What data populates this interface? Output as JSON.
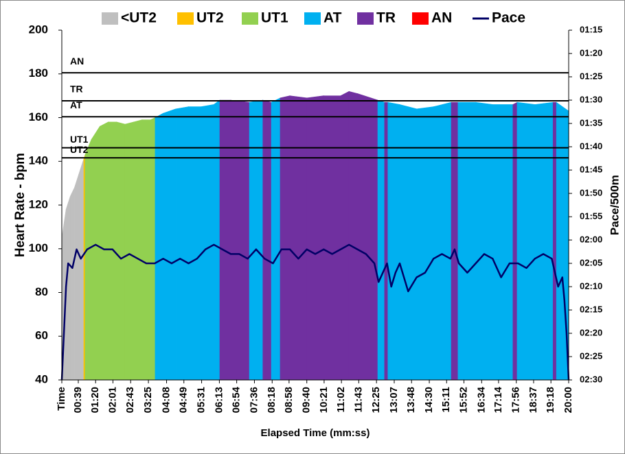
{
  "chart_data": {
    "type": "area",
    "x_label": "Elapsed Time (mm:ss)",
    "y_label": "Heart Rate - bpm",
    "y2_label": "Pace/500m",
    "xlim": [
      0,
      1200
    ],
    "ylim": [
      40,
      200
    ],
    "y2lim": [
      150,
      75
    ],
    "y2_reversed": true,
    "xticks": [
      {
        "value": 0,
        "label": "Time"
      },
      {
        "value": 39,
        "label": "00:39"
      },
      {
        "value": 80,
        "label": "01:20"
      },
      {
        "value": 121,
        "label": "02:01"
      },
      {
        "value": 163,
        "label": "02:43"
      },
      {
        "value": 205,
        "label": "03:25"
      },
      {
        "value": 248,
        "label": "04:08"
      },
      {
        "value": 289,
        "label": "04:49"
      },
      {
        "value": 331,
        "label": "05:31"
      },
      {
        "value": 373,
        "label": "06:13"
      },
      {
        "value": 414,
        "label": "06:54"
      },
      {
        "value": 456,
        "label": "07:36"
      },
      {
        "value": 498,
        "label": "08:18"
      },
      {
        "value": 538,
        "label": "08:58"
      },
      {
        "value": 580,
        "label": "09:40"
      },
      {
        "value": 621,
        "label": "10:21"
      },
      {
        "value": 662,
        "label": "11:02"
      },
      {
        "value": 703,
        "label": "11:43"
      },
      {
        "value": 745,
        "label": "12:25"
      },
      {
        "value": 787,
        "label": "13:07"
      },
      {
        "value": 828,
        "label": "13:48"
      },
      {
        "value": 870,
        "label": "14:30"
      },
      {
        "value": 911,
        "label": "15:11"
      },
      {
        "value": 952,
        "label": "15:52"
      },
      {
        "value": 994,
        "label": "16:34"
      },
      {
        "value": 1034,
        "label": "17:14"
      },
      {
        "value": 1076,
        "label": "17:56"
      },
      {
        "value": 1117,
        "label": "18:37"
      },
      {
        "value": 1158,
        "label": "19:18"
      },
      {
        "value": 1200,
        "label": "20:00"
      }
    ],
    "yticks": [
      40,
      60,
      80,
      100,
      120,
      140,
      160,
      180,
      200
    ],
    "y2ticks": [
      {
        "value": 75,
        "label": "01:15"
      },
      {
        "value": 80,
        "label": "01:20"
      },
      {
        "value": 85,
        "label": "01:25"
      },
      {
        "value": 90,
        "label": "01:30"
      },
      {
        "value": 95,
        "label": "01:35"
      },
      {
        "value": 100,
        "label": "01:40"
      },
      {
        "value": 105,
        "label": "01:45"
      },
      {
        "value": 110,
        "label": "01:50"
      },
      {
        "value": 115,
        "label": "01:55"
      },
      {
        "value": 120,
        "label": "02:00"
      },
      {
        "value": 125,
        "label": "02:05"
      },
      {
        "value": 130,
        "label": "02:10"
      },
      {
        "value": 135,
        "label": "02:15"
      },
      {
        "value": 140,
        "label": "02:20"
      },
      {
        "value": 145,
        "label": "02:25"
      },
      {
        "value": 150,
        "label": "02:30"
      }
    ],
    "reference_lines": [
      {
        "label": "AN",
        "value": 180.5
      },
      {
        "label": "TR",
        "value": 167.7
      },
      {
        "label": "AT",
        "value": 160.4
      },
      {
        "label": "UT1",
        "value": 146.2
      },
      {
        "label": "UT2",
        "value": 141.6
      }
    ],
    "series": [
      {
        "name": "<UT2",
        "color": "#bfbfbf"
      },
      {
        "name": "UT2",
        "color": "#ffc000"
      },
      {
        "name": "UT1",
        "color": "#92d050"
      },
      {
        "name": "AT",
        "color": "#00b0f0"
      },
      {
        "name": "TR",
        "color": "#7030a0"
      },
      {
        "name": "AN",
        "color": "#ff0000"
      },
      {
        "name": "Pace",
        "color": "#000066",
        "axis": "y2",
        "x": [
          0,
          10,
          15,
          25,
          35,
          45,
          60,
          80,
          100,
          120,
          140,
          160,
          180,
          200,
          220,
          240,
          260,
          280,
          300,
          320,
          340,
          360,
          380,
          400,
          420,
          440,
          460,
          480,
          500,
          520,
          540,
          560,
          580,
          600,
          620,
          640,
          660,
          680,
          700,
          720,
          740,
          750,
          760,
          770,
          780,
          790,
          800,
          820,
          840,
          860,
          880,
          900,
          920,
          930,
          940,
          960,
          980,
          1000,
          1020,
          1040,
          1060,
          1080,
          1100,
          1120,
          1140,
          1160,
          1175,
          1185,
          1190,
          1195,
          1200
        ],
        "values": [
          150,
          130,
          125,
          126,
          122,
          124,
          122,
          121,
          122,
          122,
          124,
          123,
          124,
          125,
          125,
          124,
          125,
          124,
          125,
          124,
          122,
          121,
          122,
          123,
          123,
          124,
          122,
          124,
          125,
          122,
          122,
          124,
          122,
          123,
          122,
          123,
          122,
          121,
          122,
          123,
          125,
          129,
          127,
          125,
          130,
          127,
          125,
          131,
          128,
          127,
          124,
          123,
          124,
          122,
          125,
          127,
          125,
          123,
          124,
          128,
          125,
          125,
          126,
          124,
          123,
          124,
          130,
          128,
          133,
          140,
          150
        ]
      }
    ],
    "heart_rate": {
      "x": [
        0,
        10,
        20,
        30,
        40,
        50,
        52,
        55,
        70,
        90,
        110,
        130,
        150,
        170,
        190,
        210,
        221,
        240,
        270,
        300,
        330,
        360,
        374,
        400,
        444,
        476,
        496,
        517,
        540,
        580,
        620,
        660,
        680,
        700,
        748,
        764,
        772,
        800,
        840,
        880,
        922,
        938,
        980,
        1020,
        1068,
        1078,
        1120,
        1163,
        1171,
        1200
      ],
      "values": [
        105,
        118,
        124,
        128,
        134,
        140,
        141,
        143,
        150,
        156,
        158,
        158,
        157,
        158,
        159,
        159,
        160,
        162,
        164,
        165,
        165,
        166,
        168,
        168,
        167,
        168,
        167,
        169,
        170,
        169,
        170,
        170,
        172,
        171,
        168,
        167,
        167,
        166,
        164,
        165,
        167,
        167,
        167,
        166,
        166,
        167,
        166,
        167,
        167,
        163
      ],
      "zones": [
        "<UT2",
        "<UT2",
        "<UT2",
        "<UT2",
        "<UT2",
        "<UT2",
        "UT2",
        "UT1",
        "UT1",
        "UT1",
        "UT1",
        "UT1",
        "UT1",
        "UT1",
        "UT1",
        "UT1",
        "AT",
        "AT",
        "AT",
        "AT",
        "AT",
        "AT",
        "TR",
        "TR",
        "AT",
        "TR",
        "AT",
        "TR",
        "TR",
        "TR",
        "TR",
        "TR",
        "TR",
        "TR",
        "AT",
        "TR",
        "AT",
        "AT",
        "AT",
        "AT",
        "TR",
        "AT",
        "AT",
        "AT",
        "TR",
        "AT",
        "AT",
        "TR",
        "AT",
        "AT"
      ]
    }
  }
}
